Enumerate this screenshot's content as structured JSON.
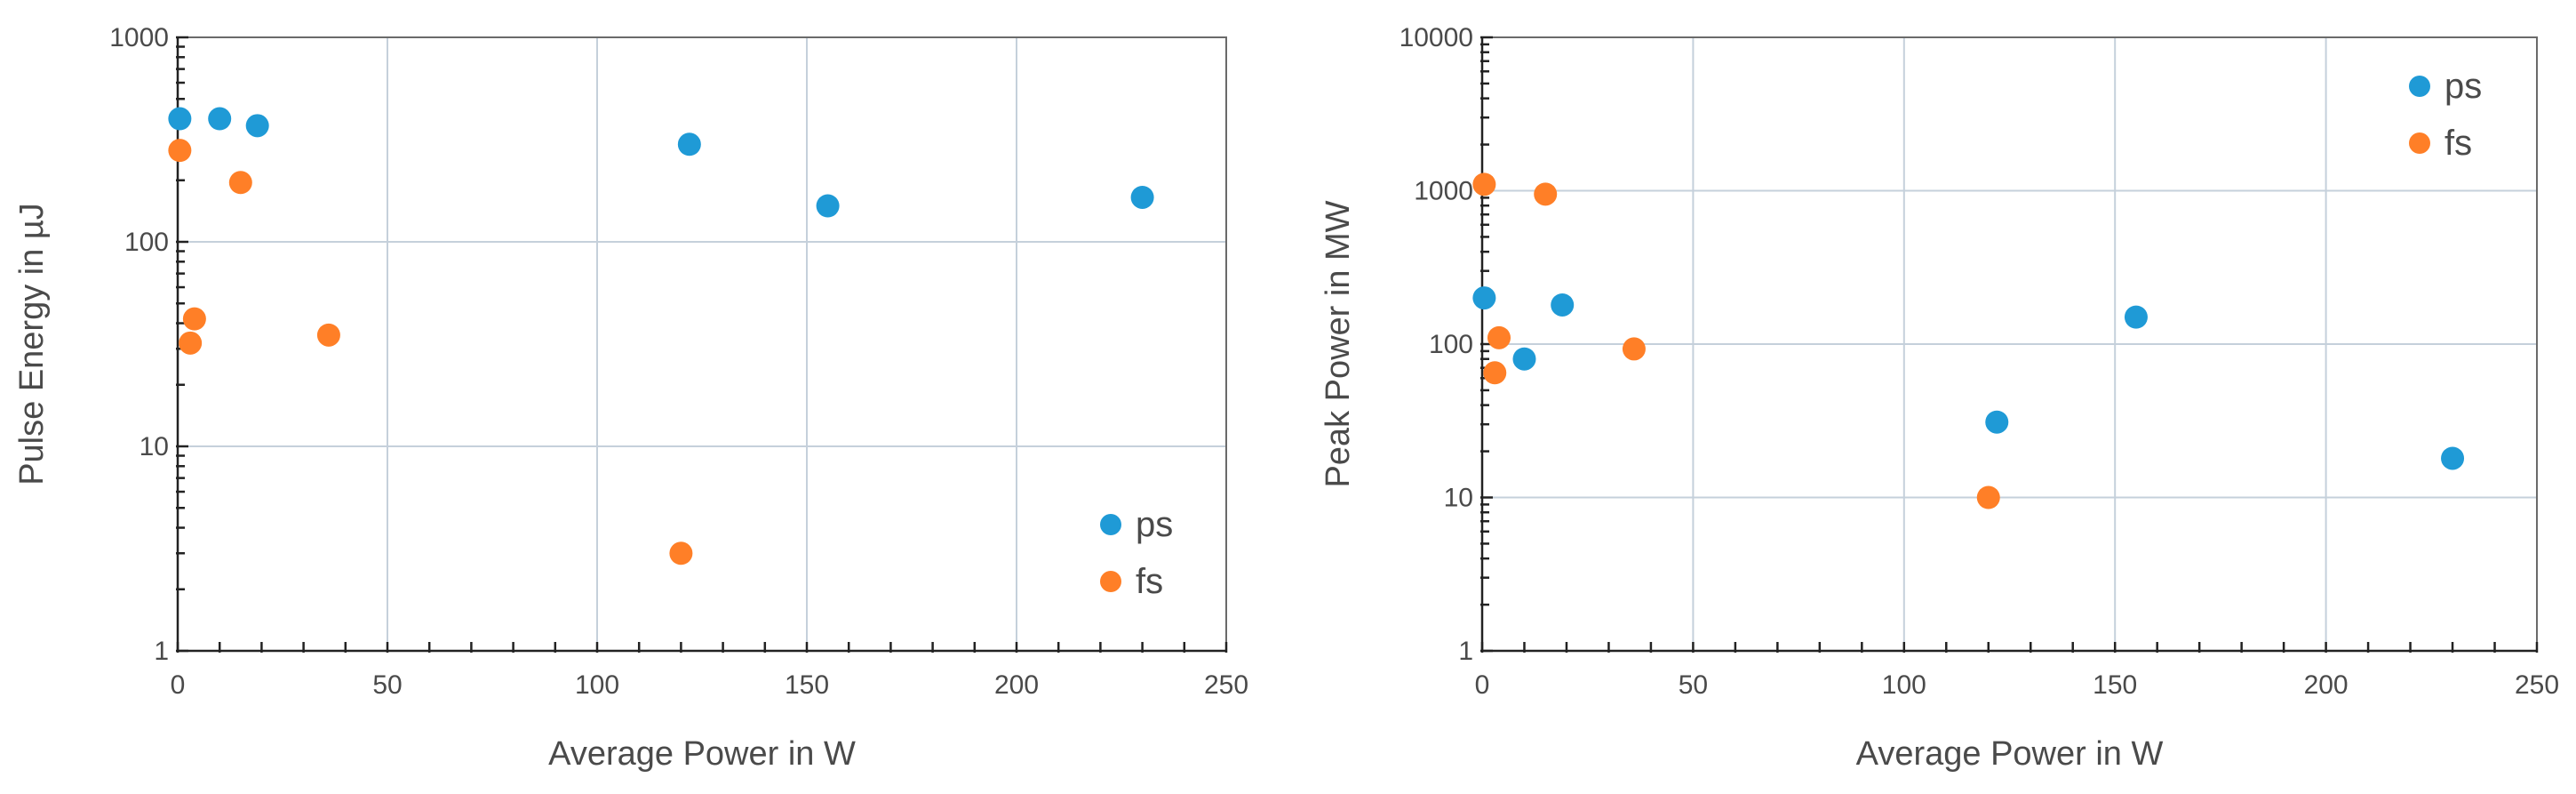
{
  "chart_data": [
    {
      "type": "scatter",
      "xlabel": "Average Power in W",
      "ylabel": "Pulse Energy in µJ",
      "yscale": "log",
      "xlim": [
        0,
        250
      ],
      "ylim": [
        1,
        1000
      ],
      "xticks": [
        "0",
        "50",
        "100",
        "150",
        "200",
        "250"
      ],
      "yticks": [
        "1",
        "10",
        "100",
        "1000"
      ],
      "grid": true,
      "legend_position": "bottom-right",
      "series": [
        {
          "name": "ps",
          "color": "#1f9ad6",
          "points": [
            {
              "x": 0.5,
              "y": 400
            },
            {
              "x": 10,
              "y": 400
            },
            {
              "x": 19,
              "y": 370
            },
            {
              "x": 122,
              "y": 300
            },
            {
              "x": 155,
              "y": 150
            },
            {
              "x": 230,
              "y": 165
            }
          ]
        },
        {
          "name": "fs",
          "color": "#ff7f27",
          "points": [
            {
              "x": 0.5,
              "y": 280
            },
            {
              "x": 15,
              "y": 195
            },
            {
              "x": 4,
              "y": 42
            },
            {
              "x": 3,
              "y": 32
            },
            {
              "x": 36,
              "y": 35
            },
            {
              "x": 120,
              "y": 3
            }
          ]
        }
      ]
    },
    {
      "type": "scatter",
      "xlabel": "Average Power in W",
      "ylabel": "Peak Power in MW",
      "yscale": "log",
      "xlim": [
        0,
        250
      ],
      "ylim": [
        1,
        10000
      ],
      "xticks": [
        "0",
        "50",
        "100",
        "150",
        "200",
        "250"
      ],
      "yticks": [
        "1",
        "10",
        "100",
        "1000",
        "10000"
      ],
      "grid": true,
      "legend_position": "top-right",
      "series": [
        {
          "name": "ps",
          "color": "#1f9ad6",
          "points": [
            {
              "x": 0.5,
              "y": 200
            },
            {
              "x": 19,
              "y": 180
            },
            {
              "x": 10,
              "y": 80
            },
            {
              "x": 122,
              "y": 31
            },
            {
              "x": 155,
              "y": 150
            },
            {
              "x": 230,
              "y": 18
            }
          ]
        },
        {
          "name": "fs",
          "color": "#ff7f27",
          "points": [
            {
              "x": 0.5,
              "y": 1100
            },
            {
              "x": 15,
              "y": 950
            },
            {
              "x": 4,
              "y": 110
            },
            {
              "x": 3,
              "y": 65
            },
            {
              "x": 36,
              "y": 93
            },
            {
              "x": 120,
              "y": 10
            }
          ]
        }
      ]
    }
  ]
}
